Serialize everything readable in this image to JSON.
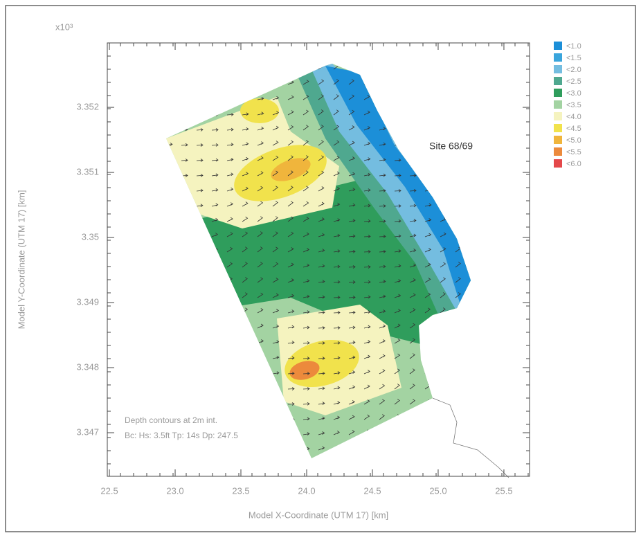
{
  "chart_data": {
    "type": "contour-map",
    "axis_multiplier": "x10³",
    "xlabel": "Model X-Coordinate (UTM 17) [km]",
    "ylabel": "Model Y-Coordinate (UTM 17) [km]",
    "xlim": [
      22.484,
      25.695
    ],
    "xticks": [
      22.5,
      {
        "value": 23,
        "label": "23.0"
      },
      23.5,
      {
        "value": 24,
        "label": "24.0"
      },
      24.5,
      {
        "value": 25,
        "label": "25.0"
      },
      25.5
    ],
    "ylim": [
      3.34633,
      3.35299
    ],
    "yticks": [
      3.347,
      3.348,
      3.349,
      3.35,
      3.351,
      3.352
    ],
    "annotations": [
      "Site 68/69",
      "Depth contours at 2m int.",
      "Bc: Hs: 3.5ft Tp: 14s Dp: 247.5"
    ],
    "legend": [
      {
        "name": "<1.0",
        "color": "#1c8fd8"
      },
      {
        "name": "<1.5",
        "color": "#3aa5dc"
      },
      {
        "name": "<2.0",
        "color": "#74bde0"
      },
      {
        "name": "<2.5",
        "color": "#4fa88f"
      },
      {
        "name": "<3.0",
        "color": "#2f9d5c"
      },
      {
        "name": "<3.5",
        "color": "#a3d3a2"
      },
      {
        "name": "<4.0",
        "color": "#f5f3bf"
      },
      {
        "name": "<4.5",
        "color": "#f1e24c"
      },
      {
        "name": "<5.0",
        "color": "#f0b53c"
      },
      {
        "name": "<5.5",
        "color": "#ec8a3c"
      },
      {
        "name": "<6.0",
        "color": "#e4484a"
      }
    ]
  }
}
